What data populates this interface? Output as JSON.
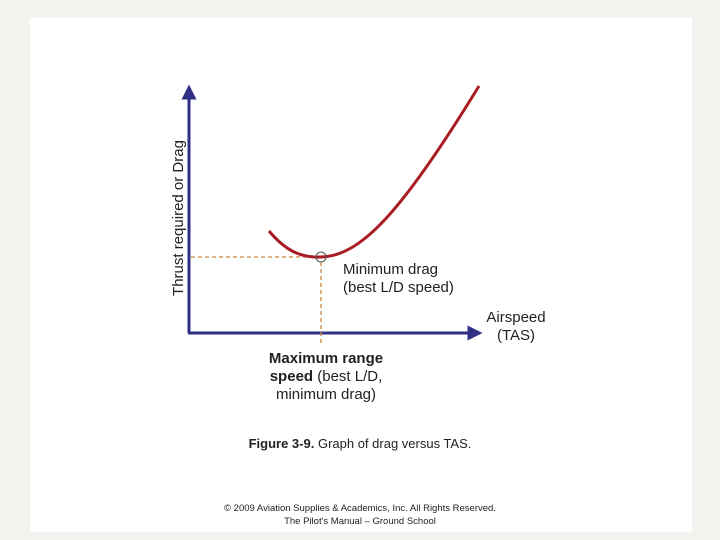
{
  "figure": {
    "y_axis_label": "Thrust required or  Drag",
    "x_axis_label": [
      "Airspeed",
      "(TAS)"
    ],
    "min_drag_label": [
      "Minimum drag",
      "(best L/D speed)"
    ],
    "max_range_label": {
      "bold_1": "Maximum range",
      "bold_2": "speed",
      "rest_2": " (best L/D,",
      "line_3": "minimum drag)"
    },
    "caption": {
      "number": "Figure 3-9.",
      "text": " Graph of drag versus TAS."
    }
  },
  "footer": [
    "© 2009 Aviation Supplies & Academics, Inc. All Rights Reserved.",
    "The Pilot's Manual – Ground School"
  ]
}
